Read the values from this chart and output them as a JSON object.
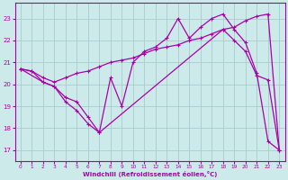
{
  "xlabel": "Windchill (Refroidissement éolien,°C)",
  "bg_color": "#cceaea",
  "grid_color": "#aacccc",
  "line_color": "#aa00aa",
  "ylim": [
    16.5,
    23.7
  ],
  "xlim": [
    -0.5,
    23.5
  ],
  "yticks": [
    17,
    18,
    19,
    20,
    21,
    22,
    23
  ],
  "xticks": [
    0,
    1,
    2,
    3,
    4,
    5,
    6,
    7,
    8,
    9,
    10,
    11,
    12,
    13,
    14,
    15,
    16,
    17,
    18,
    19,
    20,
    21,
    22,
    23
  ],
  "series1_x": [
    0,
    1,
    2,
    3,
    4,
    5,
    6,
    7,
    8,
    9,
    10,
    11,
    12,
    13,
    14,
    15,
    16,
    17,
    18,
    19,
    20,
    21,
    22,
    23
  ],
  "series1_y": [
    20.7,
    20.6,
    20.1,
    19.9,
    19.4,
    19.2,
    18.5,
    17.8,
    20.3,
    19.0,
    21.0,
    21.5,
    21.7,
    22.1,
    23.0,
    22.1,
    22.6,
    23.0,
    23.2,
    22.5,
    21.9,
    20.5,
    17.4,
    17.0
  ],
  "series2_x": [
    0,
    1,
    2,
    3,
    4,
    5,
    6,
    7,
    8,
    9,
    10,
    11,
    12,
    13,
    14,
    15,
    16,
    17,
    18,
    19,
    20,
    21,
    22,
    23
  ],
  "series2_y": [
    20.7,
    20.6,
    20.3,
    20.1,
    20.3,
    20.5,
    20.6,
    20.8,
    21.0,
    21.1,
    21.2,
    21.4,
    21.6,
    21.7,
    21.8,
    22.0,
    22.1,
    22.3,
    22.5,
    22.6,
    22.9,
    23.1,
    23.2,
    17.0
  ],
  "series3_x": [
    0,
    2,
    3,
    4,
    5,
    6,
    7,
    18,
    19,
    20,
    21,
    22,
    23
  ],
  "series3_y": [
    20.7,
    20.1,
    19.9,
    19.2,
    18.8,
    18.2,
    17.8,
    22.5,
    22.0,
    21.5,
    20.4,
    20.2,
    17.0
  ]
}
